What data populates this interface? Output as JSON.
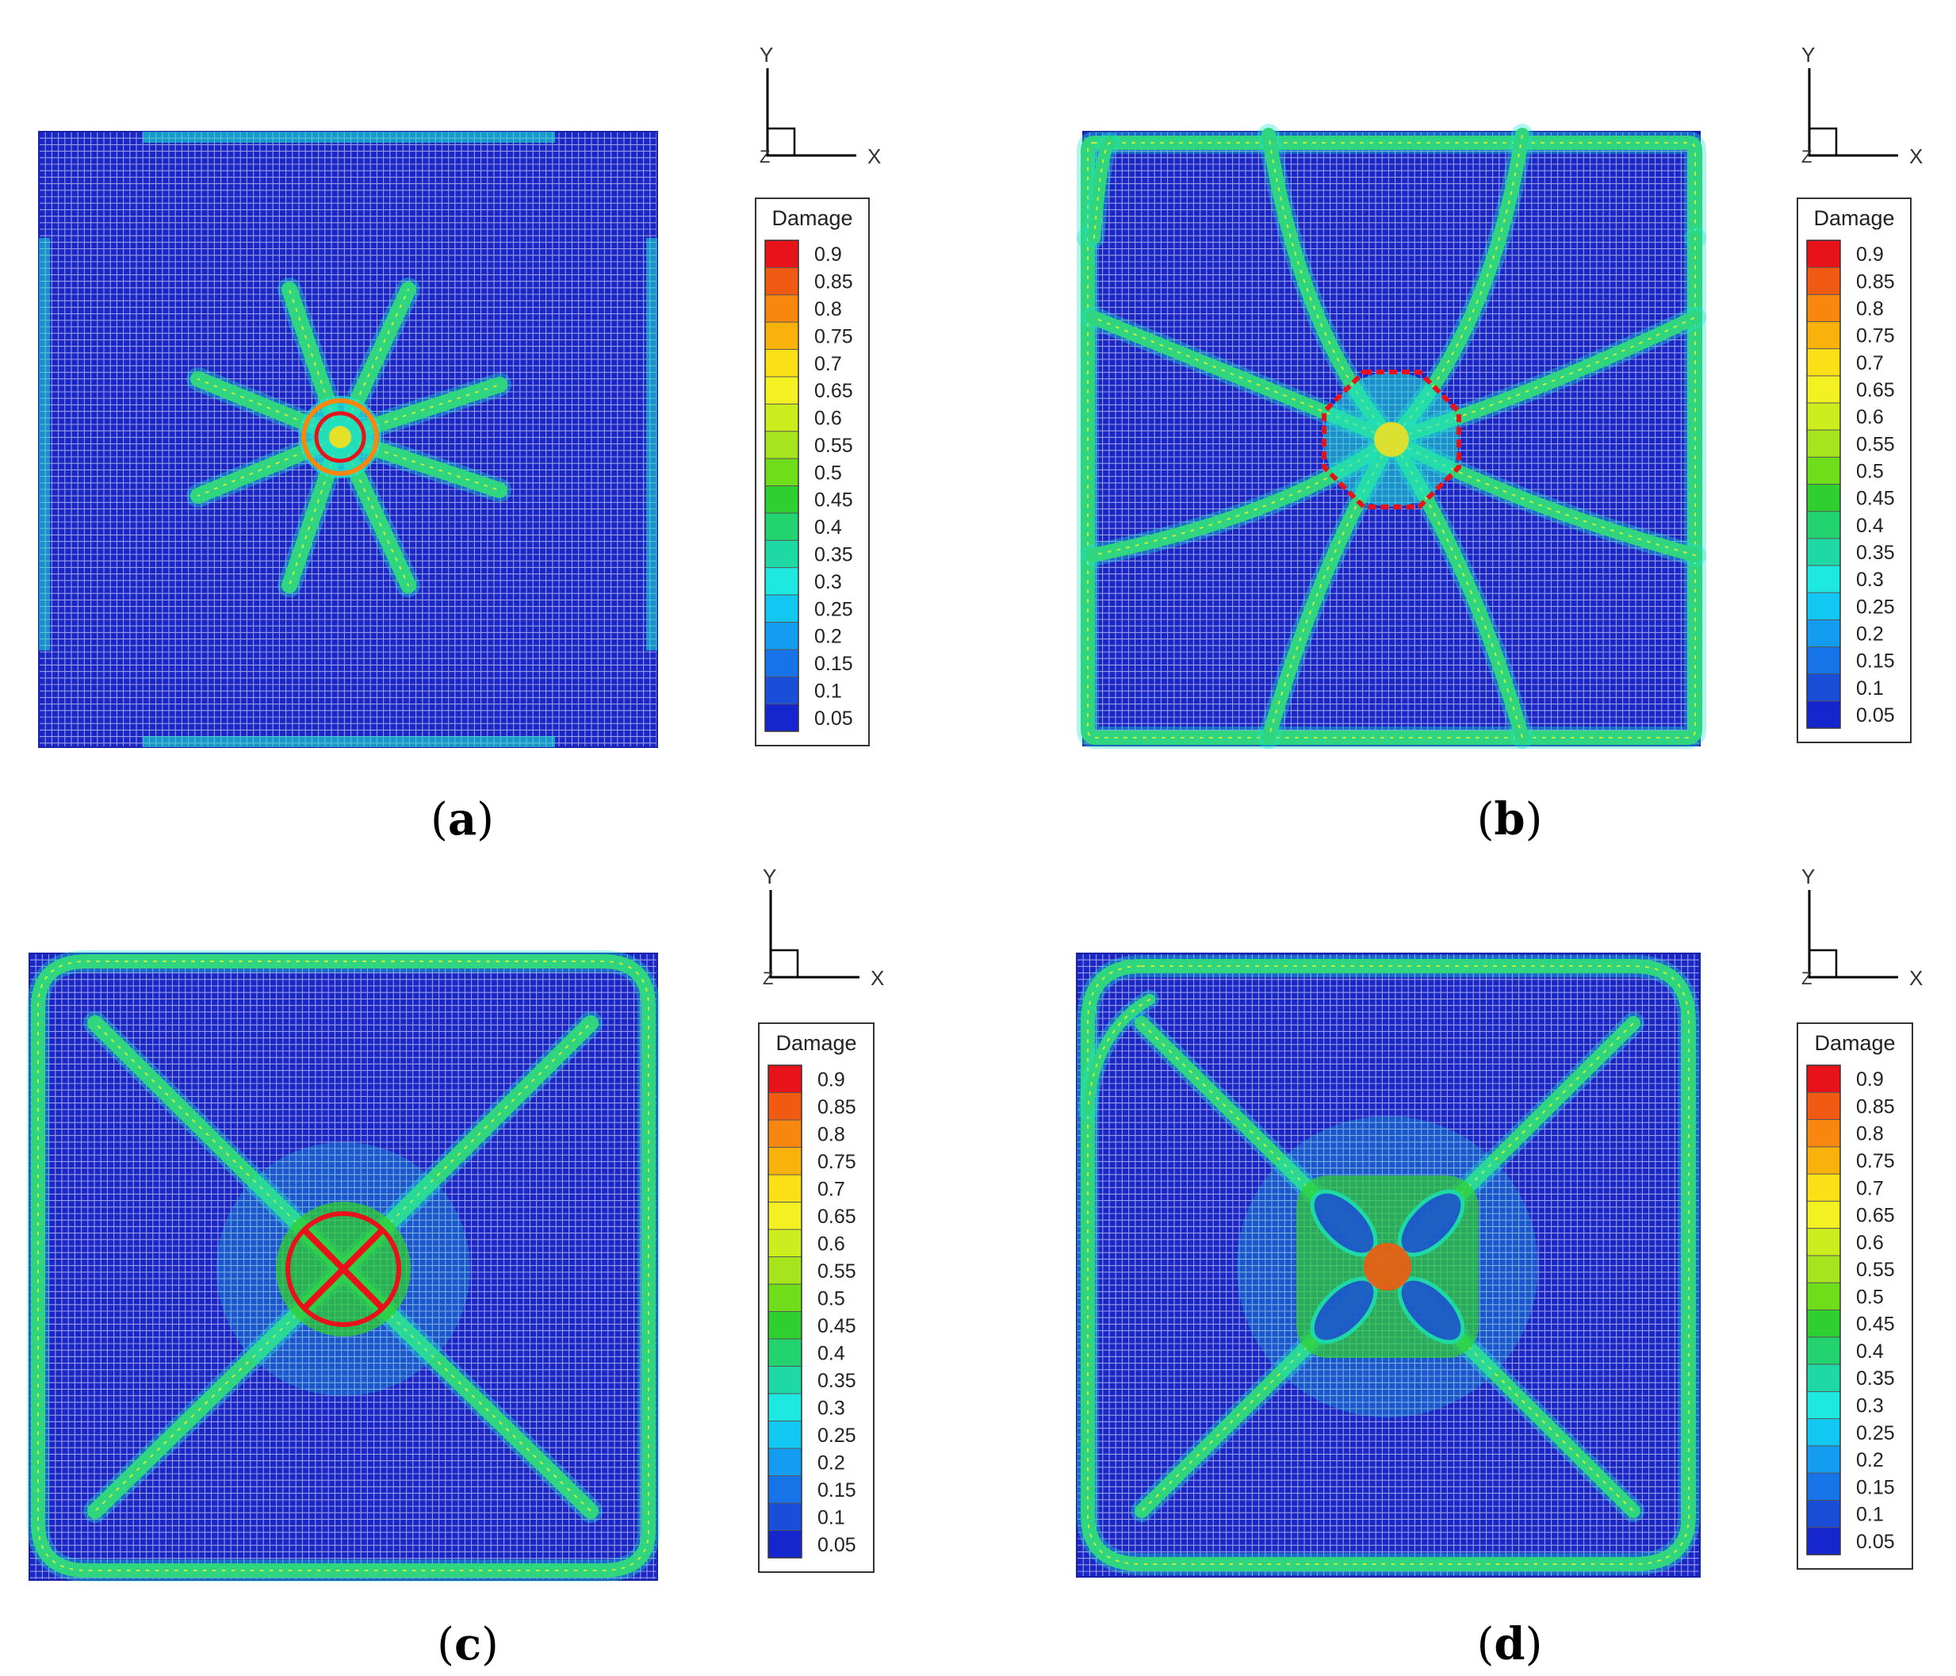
{
  "legend": {
    "title": "Damage",
    "levels": [
      "0.9",
      "0.85",
      "0.8",
      "0.75",
      "0.7",
      "0.65",
      "0.6",
      "0.55",
      "0.5",
      "0.45",
      "0.4",
      "0.35",
      "0.3",
      "0.25",
      "0.2",
      "0.15",
      "0.1",
      "0.05"
    ],
    "colors": [
      "#e8131a",
      "#f05a12",
      "#f7870e",
      "#f9b20c",
      "#fbe018",
      "#f3f122",
      "#cdee1e",
      "#a6e51e",
      "#6fdd19",
      "#2fcf2f",
      "#22d36f",
      "#1fd9a5",
      "#1ee9e1",
      "#12c8f3",
      "#149cf0",
      "#1674e8",
      "#1a4ed8",
      "#1626cf"
    ]
  },
  "axes": {
    "x_label": "X",
    "y_label": "Y",
    "z_label": "Z"
  },
  "colors": {
    "background": "#1a27c6",
    "grid_line": "#ffffff",
    "crack": "#2fd67f"
  },
  "panels": [
    {
      "id": "a",
      "caption": "a"
    },
    {
      "id": "b",
      "caption": "b"
    },
    {
      "id": "c",
      "caption": "c"
    },
    {
      "id": "d",
      "caption": "d"
    }
  ]
}
